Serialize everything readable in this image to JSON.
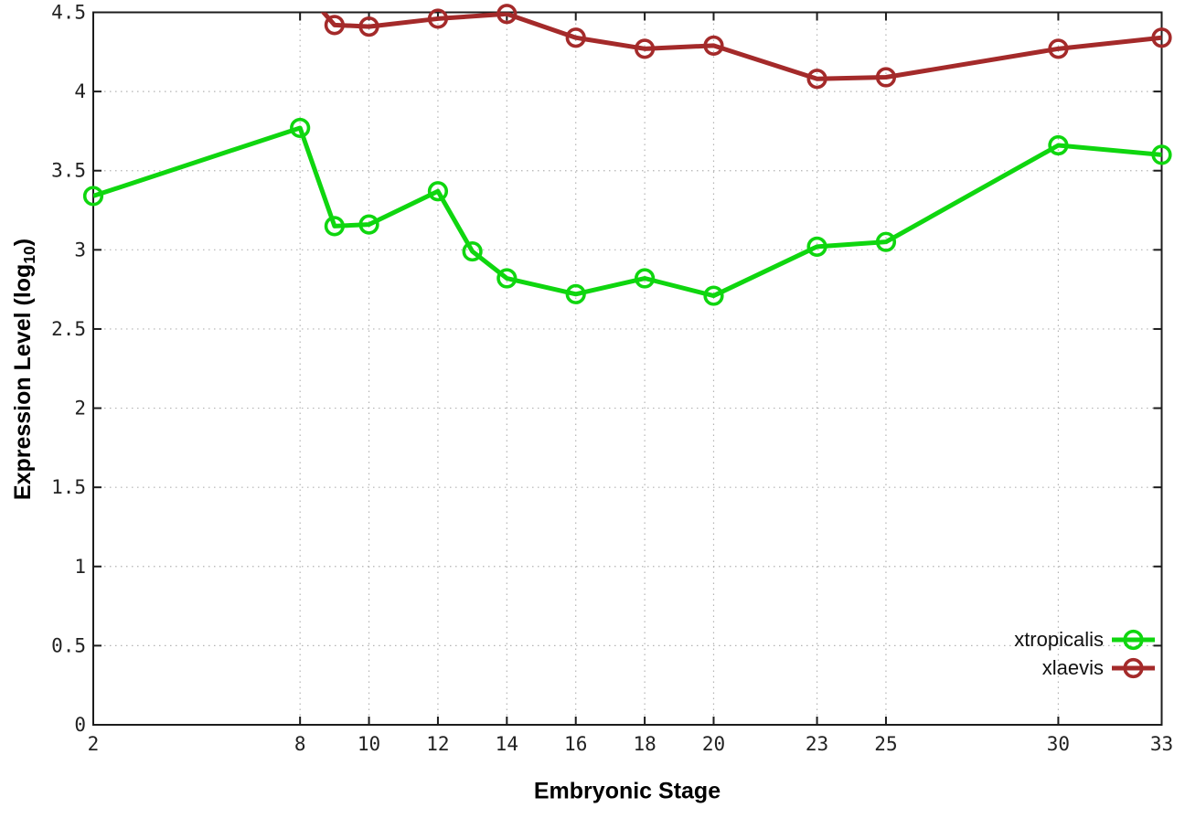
{
  "chart_data": {
    "type": "line",
    "title": "",
    "xlabel": "Embryonic Stage",
    "ylabel": {
      "prefix": "Expression Level (log",
      "subscript": "10",
      "suffix": ")"
    },
    "xlim": [
      2,
      33
    ],
    "ylim": [
      0,
      4.5
    ],
    "grid": true,
    "xtick_values": [
      2,
      8,
      10,
      12,
      14,
      16,
      18,
      20,
      23,
      25,
      30,
      33
    ],
    "xtick_labels": [
      "2",
      "8",
      "10",
      "12",
      "14",
      "16",
      "18",
      "20",
      "23",
      "25",
      "30",
      "33"
    ],
    "ytick_values": [
      0,
      0.5,
      1,
      1.5,
      2,
      2.5,
      3,
      3.5,
      4,
      4.5
    ],
    "ytick_labels": [
      "0",
      "0.5",
      "1",
      "1.5",
      "2",
      "2.5",
      "3",
      "3.5",
      "4",
      "4.5"
    ],
    "legend_position": "inside-bottom-right",
    "marker": "open-circle",
    "series": [
      {
        "name": "xtropicalis",
        "color": "#0fd60f",
        "x": [
          2,
          8,
          9,
          10,
          12,
          13,
          14,
          16,
          18,
          20,
          23,
          25,
          30,
          33
        ],
        "y": [
          3.34,
          3.77,
          3.15,
          3.16,
          3.37,
          2.99,
          2.82,
          2.72,
          2.82,
          2.71,
          3.02,
          3.05,
          3.66,
          3.6
        ]
      },
      {
        "name": "xlaevis",
        "color": "#a42a2a",
        "x": [
          8,
          9,
          10,
          12,
          14,
          16,
          18,
          20,
          23,
          25,
          30,
          33
        ],
        "y": [
          4.67,
          4.42,
          4.41,
          4.46,
          4.49,
          4.34,
          4.27,
          4.29,
          4.08,
          4.09,
          4.27,
          4.34
        ]
      }
    ],
    "colors": {
      "background": "#ffffff",
      "axis_border": "#1c1c1c",
      "grid": "#b3b3b3",
      "tick_label": "#222222",
      "legend_text": "#111111"
    }
  }
}
